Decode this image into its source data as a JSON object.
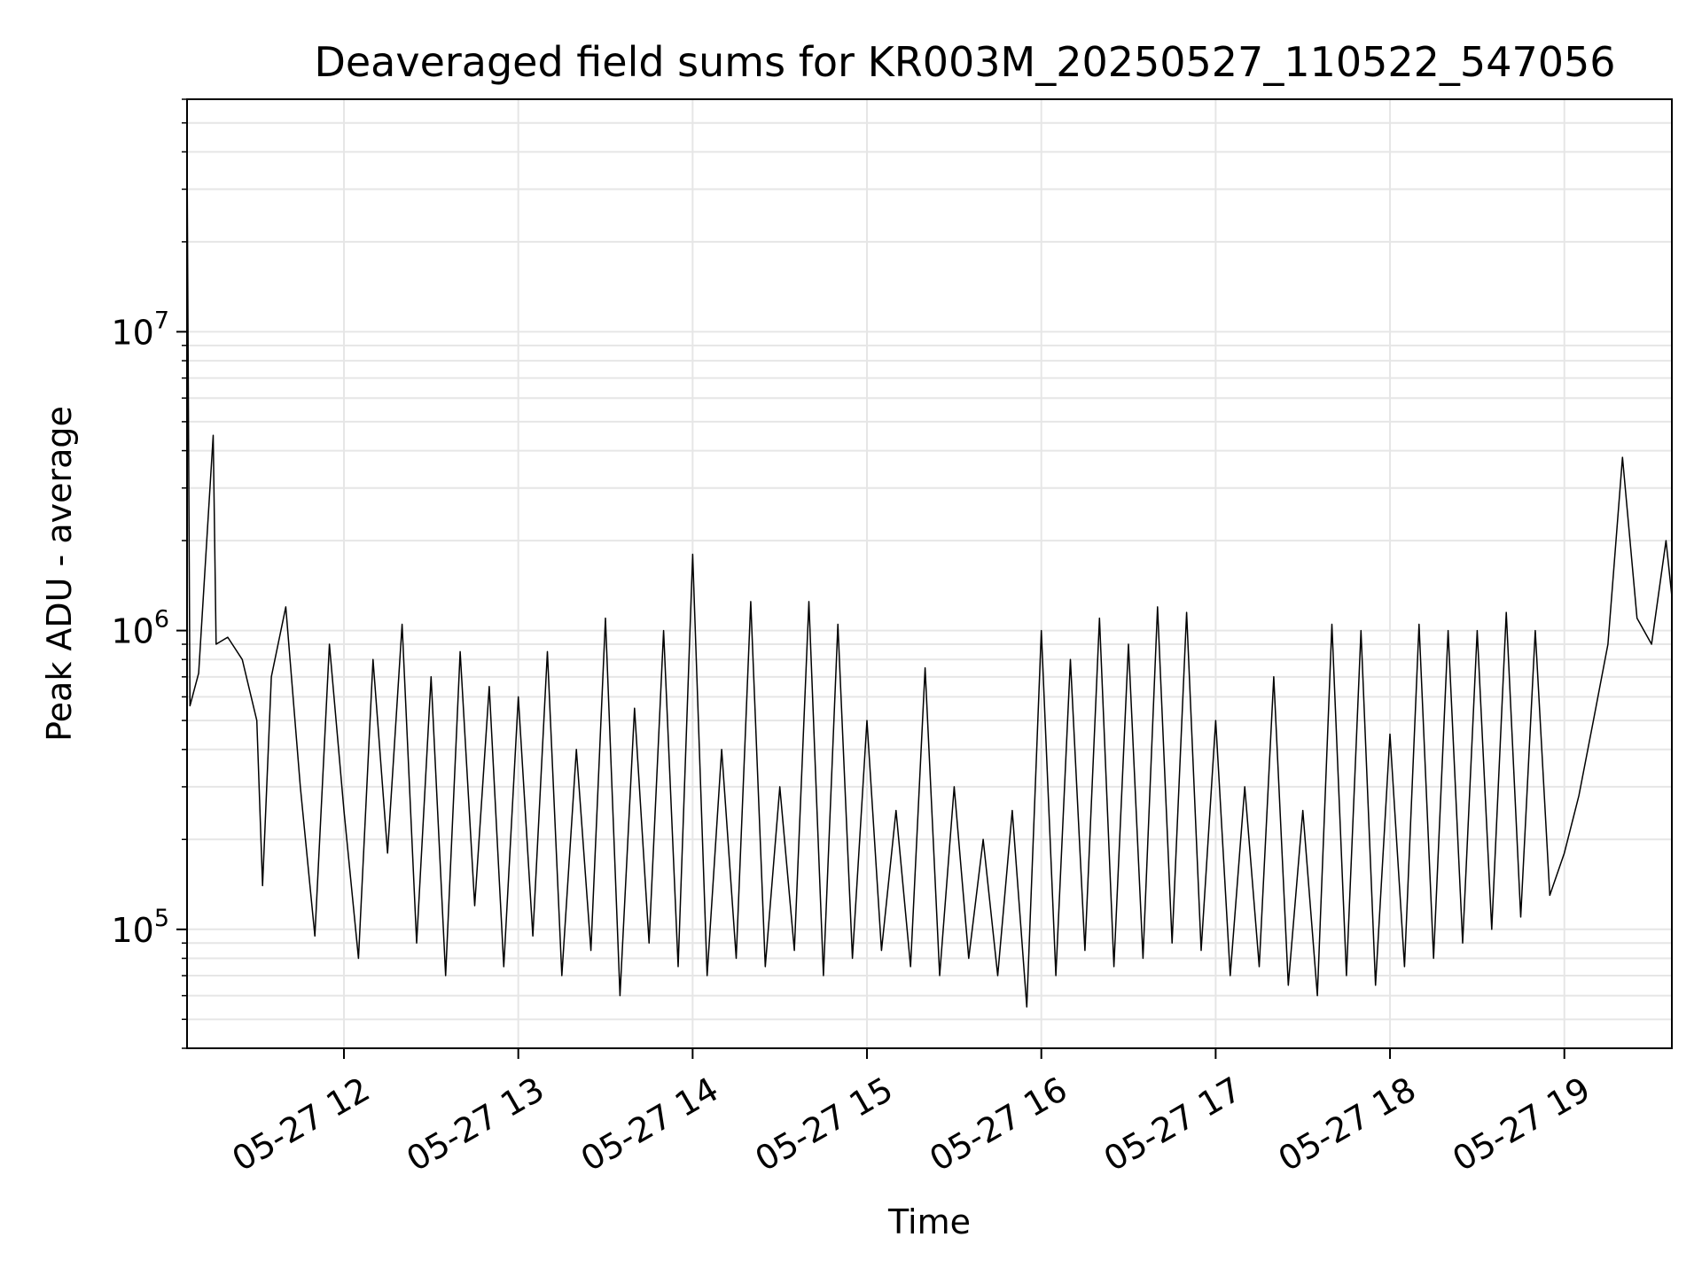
{
  "chart_data": {
    "type": "line",
    "title": "Deaveraged field sums for KR003M_20250527_110522_547056",
    "xlabel": "Time",
    "ylabel": "Peak ADU - average",
    "yscale": "log",
    "ylim": [
      40000,
      60000000
    ],
    "xlim": [
      "2025-05-27 11:06",
      "2025-05-27 19:37"
    ],
    "grid": true,
    "line_color": "#000000",
    "grid_color": "#e6e6e6",
    "x_ticks": [
      "05-27 12",
      "05-27 13",
      "05-27 14",
      "05-27 15",
      "05-27 16",
      "05-27 17",
      "05-27 18",
      "05-27 19"
    ],
    "x_tick_times": [
      "2025-05-27 12:00",
      "2025-05-27 13:00",
      "2025-05-27 14:00",
      "2025-05-27 15:00",
      "2025-05-27 16:00",
      "2025-05-27 17:00",
      "2025-05-27 18:00",
      "2025-05-27 19:00"
    ],
    "y_ticks": [
      {
        "value": 100000,
        "base": "10",
        "exp": "5"
      },
      {
        "value": 1000000,
        "base": "10",
        "exp": "6"
      },
      {
        "value": 10000000,
        "base": "10",
        "exp": "7"
      }
    ],
    "series": [
      {
        "points": [
          [
            "2025-05-27 11:06",
            650000
          ],
          [
            "2025-05-27 11:06",
            42000000
          ],
          [
            "2025-05-27 11:07",
            560000
          ],
          [
            "2025-05-27 11:10",
            720000
          ],
          [
            "2025-05-27 11:15",
            4500000
          ],
          [
            "2025-05-27 11:16",
            900000
          ],
          [
            "2025-05-27 11:20",
            950000
          ],
          [
            "2025-05-27 11:25",
            800000
          ],
          [
            "2025-05-27 11:30",
            500000
          ],
          [
            "2025-05-27 11:32",
            140000
          ],
          [
            "2025-05-27 11:35",
            700000
          ],
          [
            "2025-05-27 11:40",
            1200000
          ],
          [
            "2025-05-27 11:45",
            300000
          ],
          [
            "2025-05-27 11:50",
            95000
          ],
          [
            "2025-05-27 11:55",
            900000
          ],
          [
            "2025-05-27 12:00",
            250000
          ],
          [
            "2025-05-27 12:05",
            80000
          ],
          [
            "2025-05-27 12:10",
            800000
          ],
          [
            "2025-05-27 12:15",
            180000
          ],
          [
            "2025-05-27 12:20",
            1050000
          ],
          [
            "2025-05-27 12:25",
            90000
          ],
          [
            "2025-05-27 12:30",
            700000
          ],
          [
            "2025-05-27 12:35",
            70000
          ],
          [
            "2025-05-27 12:40",
            850000
          ],
          [
            "2025-05-27 12:45",
            120000
          ],
          [
            "2025-05-27 12:50",
            650000
          ],
          [
            "2025-05-27 12:55",
            75000
          ],
          [
            "2025-05-27 13:00",
            600000
          ],
          [
            "2025-05-27 13:05",
            95000
          ],
          [
            "2025-05-27 13:10",
            850000
          ],
          [
            "2025-05-27 13:15",
            70000
          ],
          [
            "2025-05-27 13:20",
            400000
          ],
          [
            "2025-05-27 13:25",
            85000
          ],
          [
            "2025-05-27 13:30",
            1100000
          ],
          [
            "2025-05-27 13:35",
            60000
          ],
          [
            "2025-05-27 13:40",
            550000
          ],
          [
            "2025-05-27 13:45",
            90000
          ],
          [
            "2025-05-27 13:50",
            1000000
          ],
          [
            "2025-05-27 13:55",
            75000
          ],
          [
            "2025-05-27 14:00",
            1800000
          ],
          [
            "2025-05-27 14:05",
            70000
          ],
          [
            "2025-05-27 14:10",
            400000
          ],
          [
            "2025-05-27 14:15",
            80000
          ],
          [
            "2025-05-27 14:20",
            1250000
          ],
          [
            "2025-05-27 14:25",
            75000
          ],
          [
            "2025-05-27 14:30",
            300000
          ],
          [
            "2025-05-27 14:35",
            85000
          ],
          [
            "2025-05-27 14:40",
            1250000
          ],
          [
            "2025-05-27 14:45",
            70000
          ],
          [
            "2025-05-27 14:50",
            1050000
          ],
          [
            "2025-05-27 14:55",
            80000
          ],
          [
            "2025-05-27 15:00",
            500000
          ],
          [
            "2025-05-27 15:05",
            85000
          ],
          [
            "2025-05-27 15:10",
            250000
          ],
          [
            "2025-05-27 15:15",
            75000
          ],
          [
            "2025-05-27 15:20",
            750000
          ],
          [
            "2025-05-27 15:25",
            70000
          ],
          [
            "2025-05-27 15:30",
            300000
          ],
          [
            "2025-05-27 15:35",
            80000
          ],
          [
            "2025-05-27 15:40",
            200000
          ],
          [
            "2025-05-27 15:45",
            70000
          ],
          [
            "2025-05-27 15:50",
            250000
          ],
          [
            "2025-05-27 15:55",
            55000
          ],
          [
            "2025-05-27 16:00",
            1000000
          ],
          [
            "2025-05-27 16:05",
            70000
          ],
          [
            "2025-05-27 16:10",
            800000
          ],
          [
            "2025-05-27 16:15",
            85000
          ],
          [
            "2025-05-27 16:20",
            1100000
          ],
          [
            "2025-05-27 16:25",
            75000
          ],
          [
            "2025-05-27 16:30",
            900000
          ],
          [
            "2025-05-27 16:35",
            80000
          ],
          [
            "2025-05-27 16:40",
            1200000
          ],
          [
            "2025-05-27 16:45",
            90000
          ],
          [
            "2025-05-27 16:50",
            1150000
          ],
          [
            "2025-05-27 16:55",
            85000
          ],
          [
            "2025-05-27 17:00",
            500000
          ],
          [
            "2025-05-27 17:05",
            70000
          ],
          [
            "2025-05-27 17:10",
            300000
          ],
          [
            "2025-05-27 17:15",
            75000
          ],
          [
            "2025-05-27 17:20",
            700000
          ],
          [
            "2025-05-27 17:25",
            65000
          ],
          [
            "2025-05-27 17:30",
            250000
          ],
          [
            "2025-05-27 17:35",
            60000
          ],
          [
            "2025-05-27 17:40",
            1050000
          ],
          [
            "2025-05-27 17:45",
            70000
          ],
          [
            "2025-05-27 17:50",
            1000000
          ],
          [
            "2025-05-27 17:55",
            65000
          ],
          [
            "2025-05-27 18:00",
            450000
          ],
          [
            "2025-05-27 18:05",
            75000
          ],
          [
            "2025-05-27 18:10",
            1050000
          ],
          [
            "2025-05-27 18:15",
            80000
          ],
          [
            "2025-05-27 18:20",
            1000000
          ],
          [
            "2025-05-27 18:25",
            90000
          ],
          [
            "2025-05-27 18:30",
            1000000
          ],
          [
            "2025-05-27 18:35",
            100000
          ],
          [
            "2025-05-27 18:40",
            1150000
          ],
          [
            "2025-05-27 18:45",
            110000
          ],
          [
            "2025-05-27 18:50",
            1000000
          ],
          [
            "2025-05-27 18:55",
            130000
          ],
          [
            "2025-05-27 19:00",
            180000
          ],
          [
            "2025-05-27 19:05",
            280000
          ],
          [
            "2025-05-27 19:10",
            500000
          ],
          [
            "2025-05-27 19:15",
            900000
          ],
          [
            "2025-05-27 19:20",
            3800000
          ],
          [
            "2025-05-27 19:25",
            1100000
          ],
          [
            "2025-05-27 19:30",
            900000
          ],
          [
            "2025-05-27 19:35",
            2000000
          ],
          [
            "2025-05-27 19:37",
            1300000
          ]
        ]
      }
    ]
  }
}
